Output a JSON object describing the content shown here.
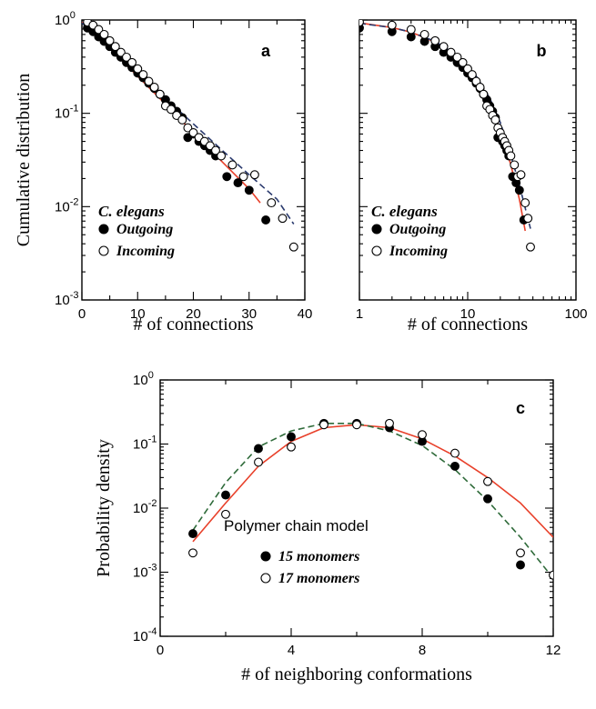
{
  "colors": {
    "fit_solid": "#e8402a",
    "fit_dashed_ab": "#2a3a6e",
    "fit_dashed_c": "#2f6b3a",
    "marker": "#000000"
  },
  "chart_data": [
    {
      "panel": "a",
      "type": "scatter",
      "ylabel": "Cumulative distribution",
      "xlabel": "# of connections",
      "xscale": "linear",
      "yscale": "log",
      "xlim": [
        0,
        40
      ],
      "ylim": [
        0.001,
        1
      ],
      "xticks": [
        "0",
        "10",
        "20",
        "30",
        "40"
      ],
      "legend_title": "C. elegans",
      "legend_position": "bottom-left",
      "series": [
        {
          "name": "Outgoing",
          "marker": "filled-circle",
          "x": [
            1,
            2,
            3,
            4,
            5,
            6,
            7,
            8,
            9,
            10,
            11,
            12,
            13,
            14,
            15,
            16,
            17,
            18,
            19,
            20,
            21,
            22,
            23,
            24,
            26,
            28,
            30,
            33
          ],
          "y": [
            0.82,
            0.75,
            0.66,
            0.59,
            0.52,
            0.45,
            0.4,
            0.35,
            0.31,
            0.27,
            0.24,
            0.21,
            0.185,
            0.16,
            0.14,
            0.12,
            0.105,
            0.09,
            0.055,
            0.06,
            0.05,
            0.045,
            0.04,
            0.035,
            0.021,
            0.018,
            0.015,
            0.0072
          ]
        },
        {
          "name": "Incoming",
          "marker": "open-circle",
          "x": [
            1,
            2,
            3,
            4,
            5,
            6,
            7,
            8,
            9,
            10,
            11,
            12,
            13,
            14,
            15,
            16,
            17,
            18,
            19,
            20,
            21,
            22,
            23,
            24,
            25,
            27,
            29,
            31,
            34,
            36,
            38
          ],
          "y": [
            0.95,
            0.88,
            0.79,
            0.7,
            0.6,
            0.52,
            0.45,
            0.4,
            0.35,
            0.3,
            0.26,
            0.22,
            0.19,
            0.16,
            0.12,
            0.11,
            0.095,
            0.085,
            0.07,
            0.062,
            0.055,
            0.05,
            0.045,
            0.04,
            0.035,
            0.028,
            0.021,
            0.022,
            0.011,
            0.0075,
            0.0037
          ]
        },
        {
          "name": "",
          "style": "solid-fit",
          "x": [
            0,
            5,
            10,
            15,
            20,
            25,
            30,
            32
          ],
          "y": [
            0.95,
            0.5,
            0.25,
            0.125,
            0.062,
            0.031,
            0.0155,
            0.011
          ]
        },
        {
          "name": "",
          "style": "dashed-fit",
          "x": [
            0,
            5,
            10,
            15,
            20,
            25,
            30,
            35,
            38
          ],
          "y": [
            0.93,
            0.51,
            0.27,
            0.145,
            0.077,
            0.041,
            0.022,
            0.012,
            0.0065
          ]
        }
      ]
    },
    {
      "panel": "b",
      "type": "scatter",
      "xlabel": "# of connections",
      "xscale": "log",
      "yscale": "log",
      "xlim": [
        1,
        100
      ],
      "ylim": [
        0.001,
        1
      ],
      "xticks": [
        "1",
        "10",
        "100"
      ],
      "legend_title": "C. elegans",
      "legend_position": "bottom-left",
      "series": [
        {
          "name": "Outgoing",
          "marker": "filled-circle",
          "x": [
            1,
            2,
            3,
            4,
            5,
            6,
            7,
            8,
            9,
            10,
            11,
            12,
            13,
            14,
            15,
            16,
            17,
            18,
            19,
            20,
            21,
            22,
            23,
            24,
            26,
            28,
            30,
            33
          ],
          "y": [
            0.82,
            0.75,
            0.66,
            0.59,
            0.52,
            0.45,
            0.4,
            0.35,
            0.31,
            0.27,
            0.24,
            0.21,
            0.185,
            0.16,
            0.14,
            0.12,
            0.105,
            0.09,
            0.055,
            0.06,
            0.05,
            0.045,
            0.04,
            0.035,
            0.021,
            0.018,
            0.015,
            0.0072
          ]
        },
        {
          "name": "Incoming",
          "marker": "open-circle",
          "x": [
            1,
            2,
            3,
            4,
            5,
            6,
            7,
            8,
            9,
            10,
            11,
            12,
            13,
            14,
            15,
            16,
            17,
            18,
            19,
            20,
            21,
            22,
            23,
            24,
            25,
            27,
            29,
            31,
            34,
            36,
            38
          ],
          "y": [
            0.95,
            0.88,
            0.79,
            0.7,
            0.6,
            0.52,
            0.45,
            0.4,
            0.35,
            0.3,
            0.26,
            0.22,
            0.19,
            0.16,
            0.12,
            0.11,
            0.095,
            0.085,
            0.07,
            0.062,
            0.055,
            0.05,
            0.045,
            0.04,
            0.035,
            0.028,
            0.021,
            0.022,
            0.011,
            0.0075,
            0.0037
          ]
        },
        {
          "name": "",
          "style": "solid-fit",
          "x": [
            1,
            2,
            3,
            5,
            8,
            12,
            16,
            20,
            25,
            30,
            34
          ],
          "y": [
            0.93,
            0.83,
            0.74,
            0.58,
            0.4,
            0.23,
            0.13,
            0.065,
            0.028,
            0.012,
            0.0055
          ]
        },
        {
          "name": "",
          "style": "dashed-fit",
          "x": [
            1,
            2,
            3,
            5,
            8,
            12,
            16,
            20,
            25,
            30,
            35,
            38
          ],
          "y": [
            0.92,
            0.83,
            0.74,
            0.59,
            0.42,
            0.25,
            0.145,
            0.08,
            0.036,
            0.017,
            0.0085,
            0.0058
          ]
        }
      ]
    },
    {
      "panel": "c",
      "type": "scatter",
      "ylabel": "Probability density",
      "xlabel": "# of neighboring conformations",
      "xscale": "linear",
      "yscale": "log",
      "xlim": [
        0,
        12
      ],
      "ylim": [
        0.0001,
        1
      ],
      "xticks": [
        "0",
        "4",
        "8",
        "12"
      ],
      "legend_title": "Polymer chain  model",
      "legend_position": "bottom-center",
      "series": [
        {
          "name": "15 monomers",
          "marker": "filled-circle",
          "x": [
            1,
            2,
            3,
            4,
            5,
            6,
            7,
            8,
            9,
            10,
            11
          ],
          "y": [
            0.004,
            0.016,
            0.085,
            0.13,
            0.21,
            0.21,
            0.18,
            0.11,
            0.045,
            0.014,
            0.0013
          ]
        },
        {
          "name": "17 monomers",
          "marker": "open-circle",
          "x": [
            1,
            2,
            3,
            4,
            5,
            6,
            7,
            8,
            9,
            10,
            11,
            12
          ],
          "y": [
            0.002,
            0.008,
            0.052,
            0.09,
            0.2,
            0.2,
            0.21,
            0.14,
            0.072,
            0.026,
            0.002,
            0.0009
          ]
        },
        {
          "name": "",
          "style": "solid-fit",
          "x": [
            1,
            2,
            3,
            4,
            5,
            6,
            7,
            8,
            9,
            10,
            11,
            12
          ],
          "y": [
            0.003,
            0.012,
            0.045,
            0.11,
            0.18,
            0.2,
            0.18,
            0.12,
            0.065,
            0.03,
            0.012,
            0.0035
          ]
        },
        {
          "name": "",
          "style": "dashed-fit",
          "x": [
            1,
            2,
            3,
            4,
            5,
            6,
            7,
            8,
            9,
            10,
            11,
            12
          ],
          "y": [
            0.0045,
            0.025,
            0.09,
            0.16,
            0.21,
            0.21,
            0.16,
            0.095,
            0.04,
            0.013,
            0.0035,
            0.0008
          ]
        }
      ]
    }
  ],
  "ytick_labels": {
    "a": [
      "10",
      "10",
      "10",
      "10"
    ],
    "c": [
      "10",
      "10",
      "10",
      "10",
      "10"
    ]
  },
  "ytick_exponents": {
    "a": [
      "0",
      "-1",
      "-2",
      "-3"
    ],
    "c": [
      "0",
      "-1",
      "-2",
      "-3",
      "-4"
    ]
  }
}
